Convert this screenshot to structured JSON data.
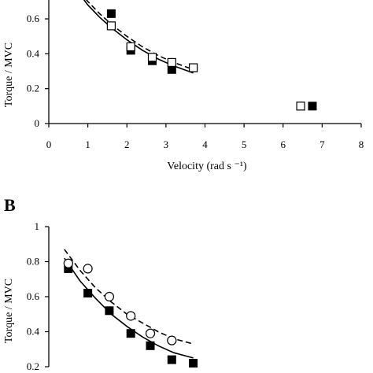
{
  "chart_data": [
    {
      "type": "scatter",
      "panel_label": "",
      "xlabel": "Velocity (rad s ⁻¹)",
      "ylabel": "Torque / MVC",
      "xlim": [
        0,
        8
      ],
      "ylim": [
        0,
        0.7
      ],
      "x_ticks": [
        "0",
        "1",
        "2",
        "3",
        "4",
        "5",
        "6",
        "7",
        "8"
      ],
      "y_ticks": [
        "0",
        "0.2",
        "0.4",
        "0.6"
      ],
      "series": [
        {
          "marker": "filled-square",
          "x": [
            1.6,
            2.1,
            2.65,
            3.15,
            3.7,
            6.75
          ],
          "y": [
            0.63,
            0.42,
            0.36,
            0.31,
            0.32,
            0.1
          ]
        },
        {
          "marker": "open-square",
          "x": [
            1.6,
            2.1,
            2.65,
            3.15,
            3.7,
            6.45
          ],
          "y": [
            0.56,
            0.44,
            0.38,
            0.35,
            0.32,
            0.1
          ]
        }
      ],
      "curves": [
        {
          "style": "solid",
          "x": [
            0.8,
            1.0,
            1.3,
            1.6,
            2.0,
            2.4,
            2.8,
            3.2,
            3.7
          ],
          "y": [
            0.74,
            0.68,
            0.61,
            0.55,
            0.48,
            0.42,
            0.37,
            0.33,
            0.29
          ]
        },
        {
          "style": "dashed",
          "x": [
            0.8,
            1.0,
            1.3,
            1.6,
            2.0,
            2.4,
            2.8,
            3.2,
            3.7
          ],
          "y": [
            0.75,
            0.7,
            0.63,
            0.57,
            0.5,
            0.44,
            0.39,
            0.35,
            0.31
          ]
        }
      ]
    },
    {
      "type": "scatter",
      "panel_label": "B",
      "xlabel": "",
      "ylabel": "Torque / MVC",
      "xlim": [
        0,
        8
      ],
      "ylim": [
        0.2,
        1
      ],
      "x_ticks": [],
      "y_ticks": [
        "0.2",
        "0.4",
        "0.6",
        "0.8",
        "1"
      ],
      "series": [
        {
          "marker": "filled-square",
          "x": [
            0.5,
            1.0,
            1.55,
            2.1,
            2.6,
            3.15,
            3.7
          ],
          "y": [
            0.76,
            0.62,
            0.52,
            0.39,
            0.32,
            0.24,
            0.22
          ]
        },
        {
          "marker": "open-circle",
          "x": [
            0.5,
            1.0,
            1.55,
            2.1,
            2.6,
            3.15
          ],
          "y": [
            0.79,
            0.76,
            0.6,
            0.49,
            0.39,
            0.35
          ]
        }
      ],
      "curves": [
        {
          "style": "solid",
          "x": [
            0.4,
            0.8,
            1.2,
            1.6,
            2.0,
            2.4,
            2.8,
            3.2,
            3.7
          ],
          "y": [
            0.82,
            0.69,
            0.59,
            0.5,
            0.43,
            0.37,
            0.32,
            0.28,
            0.25
          ]
        },
        {
          "style": "dashed",
          "x": [
            0.4,
            0.8,
            1.2,
            1.6,
            2.0,
            2.4,
            2.8,
            3.2,
            3.7
          ],
          "y": [
            0.87,
            0.75,
            0.65,
            0.57,
            0.5,
            0.45,
            0.4,
            0.36,
            0.33
          ]
        }
      ]
    }
  ]
}
